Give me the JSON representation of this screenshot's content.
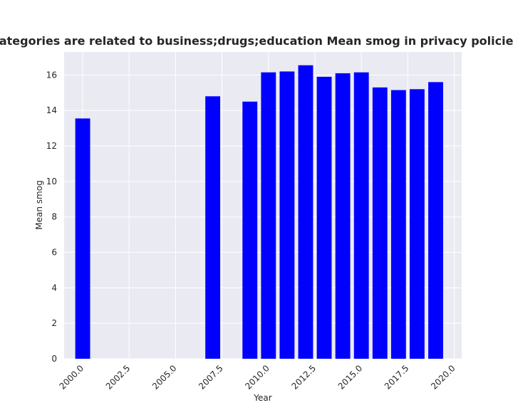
{
  "chart_data": {
    "type": "bar",
    "title": "when categories are related to business;drugs;education Mean smog in privacy policies by Year",
    "xlabel": "Year",
    "ylabel": "Mean smog",
    "x": [
      2000,
      2007,
      2009,
      2010,
      2011,
      2012,
      2013,
      2014,
      2015,
      2016,
      2017,
      2018,
      2019
    ],
    "values": [
      13.55,
      14.8,
      14.5,
      16.15,
      16.2,
      16.55,
      15.9,
      16.1,
      16.15,
      15.3,
      15.15,
      15.2,
      15.6
    ],
    "xlim": [
      1999.0,
      2020.4
    ],
    "ylim": [
      0,
      17.3
    ],
    "xticks": [
      2000.0,
      2002.5,
      2005.0,
      2007.5,
      2010.0,
      2012.5,
      2015.0,
      2017.5,
      2020.0
    ],
    "xtick_labels": [
      "2000.0",
      "2002.5",
      "2005.0",
      "2007.5",
      "2010.0",
      "2012.5",
      "2015.0",
      "2017.5",
      "2020.0"
    ],
    "yticks": [
      0,
      2,
      4,
      6,
      8,
      10,
      12,
      14,
      16
    ],
    "ytick_labels": [
      "0",
      "2",
      "4",
      "6",
      "8",
      "10",
      "12",
      "14",
      "16"
    ],
    "bar_color": "#0000ff",
    "background_color": "#eaeaf2",
    "grid_color": "#ffffff",
    "grid": true,
    "legend": false
  }
}
